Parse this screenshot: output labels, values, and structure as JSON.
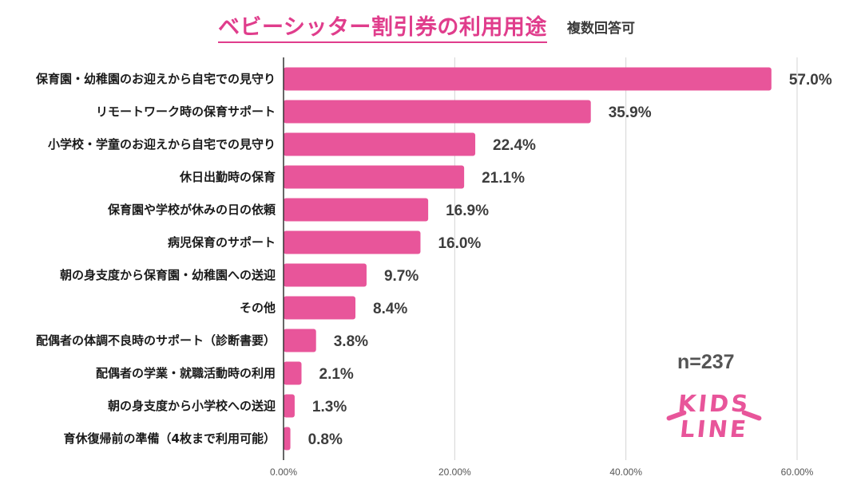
{
  "colors": {
    "bar": "#e8559a",
    "title": "#e03d8c",
    "grid": "#d4d4d4",
    "axis": "#333333"
  },
  "logo": {
    "line1": "KIDS",
    "line2": "LINE"
  },
  "sample_size": "n=237",
  "chart_data": {
    "type": "bar",
    "orientation": "horizontal",
    "title": "ベビーシッター割引券の利用用途",
    "subtitle": "複数回答可",
    "categories": [
      "保育園・幼稚園のお迎えから自宅での見守り",
      "リモートワーク時の保育サポート",
      "小学校・学童のお迎えから自宅での見守り",
      "休日出勤時の保育",
      "保育園や学校が休みの日の依頼",
      "病児保育のサポート",
      "朝の身支度から保育園・幼稚園への送迎",
      "その他",
      "配偶者の体調不良時のサポート（診断書要）",
      "配偶者の学業・就職活動時の利用",
      "朝の身支度から小学校への送迎",
      "育休復帰前の準備（4枚まで利用可能）"
    ],
    "values": [
      57.0,
      35.9,
      22.4,
      21.1,
      16.9,
      16.0,
      9.7,
      8.4,
      3.8,
      2.1,
      1.3,
      0.8
    ],
    "value_labels": [
      "57.0%",
      "35.9%",
      "22.4%",
      "21.1%",
      "16.9%",
      "16.0%",
      "9.7%",
      "8.4%",
      "3.8%",
      "2.1%",
      "1.3%",
      "0.8%"
    ],
    "xlim": [
      0,
      60
    ],
    "xticks": [
      0,
      20,
      40,
      60
    ],
    "xtick_labels": [
      "0.00%",
      "20.00%",
      "40.00%",
      "60.00%"
    ],
    "grid": true,
    "xlabel": "",
    "ylabel": ""
  }
}
